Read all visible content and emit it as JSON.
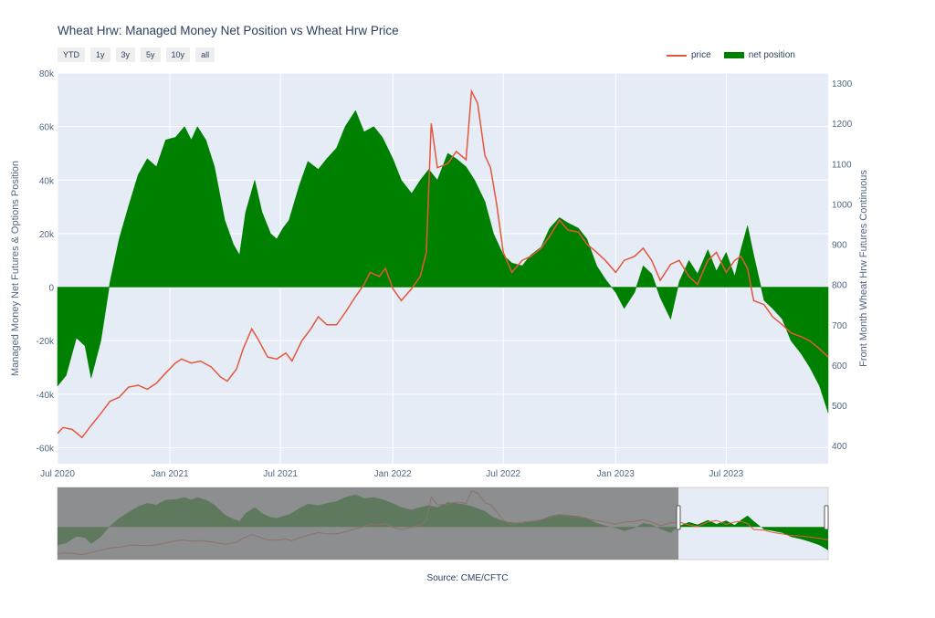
{
  "title": "Wheat Hrw: Managed Money Net Position vs Wheat Hrw Price",
  "range_buttons": [
    "YTD",
    "1y",
    "3y",
    "5y",
    "10y",
    "all"
  ],
  "legend": {
    "price_label": "price",
    "position_label": "net position"
  },
  "source": "Source: CME/CFTC",
  "colors": {
    "price": "#e4573d",
    "position": "#008000",
    "plot_bg": "#e5ecf6"
  },
  "chart_data": {
    "type": "area",
    "title": "Wheat Hrw: Managed Money Net Position vs Wheat Hrw Price",
    "y_left_label": "Managed Money Net Futures & Options Position",
    "y_right_label": "Front Month Wheat Hrw Futures Continuous",
    "y_left_ticks": [
      "80k",
      "60k",
      "40k",
      "20k",
      "0",
      "-20k",
      "-40k",
      "-60k"
    ],
    "y_right_ticks": [
      "1300",
      "1200",
      "1100",
      "1000",
      "900",
      "800",
      "700",
      "600",
      "500",
      "400"
    ],
    "x_tick_labels": [
      "Jul 2020",
      "Jan 2021",
      "Jul 2021",
      "Jan 2022",
      "Jul 2022",
      "Jan 2023",
      "Jul 2023"
    ],
    "x_range": [
      "2020-07-01",
      "2023-12-15"
    ],
    "y_left_range": [
      -66000,
      80000
    ],
    "y_right_range": [
      355,
      1325
    ],
    "series": [
      {
        "name": "net position",
        "axis": "left",
        "points": [
          [
            "2020-07-01",
            -37000
          ],
          [
            "2020-07-15",
            -33000
          ],
          [
            "2020-08-01",
            -19000
          ],
          [
            "2020-08-15",
            -22000
          ],
          [
            "2020-08-25",
            -34000
          ],
          [
            "2020-09-10",
            -20000
          ],
          [
            "2020-09-25",
            2000
          ],
          [
            "2020-10-10",
            18000
          ],
          [
            "2020-10-25",
            30000
          ],
          [
            "2020-11-10",
            42000
          ],
          [
            "2020-11-25",
            48000
          ],
          [
            "2020-12-10",
            45000
          ],
          [
            "2020-12-25",
            55000
          ],
          [
            "2021-01-10",
            56000
          ],
          [
            "2021-01-25",
            60000
          ],
          [
            "2021-02-05",
            55000
          ],
          [
            "2021-02-15",
            60000
          ],
          [
            "2021-03-01",
            55000
          ],
          [
            "2021-03-15",
            45000
          ],
          [
            "2021-04-01",
            25000
          ],
          [
            "2021-04-15",
            16000
          ],
          [
            "2021-04-25",
            12000
          ],
          [
            "2021-05-05",
            28000
          ],
          [
            "2021-05-20",
            40000
          ],
          [
            "2021-06-01",
            28000
          ],
          [
            "2021-06-15",
            20000
          ],
          [
            "2021-06-25",
            18000
          ],
          [
            "2021-07-05",
            22000
          ],
          [
            "2021-07-15",
            25000
          ],
          [
            "2021-08-01",
            38000
          ],
          [
            "2021-08-15",
            47000
          ],
          [
            "2021-09-01",
            44000
          ],
          [
            "2021-09-15",
            48000
          ],
          [
            "2021-10-01",
            52000
          ],
          [
            "2021-10-15",
            60000
          ],
          [
            "2021-11-01",
            66000
          ],
          [
            "2021-11-15",
            58000
          ],
          [
            "2021-12-01",
            60000
          ],
          [
            "2021-12-15",
            56000
          ],
          [
            "2022-01-01",
            48000
          ],
          [
            "2022-01-15",
            40000
          ],
          [
            "2022-02-01",
            35000
          ],
          [
            "2022-02-15",
            40000
          ],
          [
            "2022-03-01",
            44000
          ],
          [
            "2022-03-15",
            40000
          ],
          [
            "2022-04-01",
            50000
          ],
          [
            "2022-04-15",
            48000
          ],
          [
            "2022-05-01",
            45000
          ],
          [
            "2022-05-15",
            40000
          ],
          [
            "2022-06-01",
            32000
          ],
          [
            "2022-06-15",
            20000
          ],
          [
            "2022-07-01",
            12000
          ],
          [
            "2022-07-15",
            9000
          ],
          [
            "2022-08-01",
            8000
          ],
          [
            "2022-08-15",
            12000
          ],
          [
            "2022-09-01",
            15000
          ],
          [
            "2022-09-15",
            22000
          ],
          [
            "2022-10-01",
            26000
          ],
          [
            "2022-10-15",
            24000
          ],
          [
            "2022-11-01",
            22000
          ],
          [
            "2022-11-15",
            18000
          ],
          [
            "2022-12-01",
            8000
          ],
          [
            "2022-12-15",
            3000
          ],
          [
            "2023-01-01",
            -2000
          ],
          [
            "2023-01-15",
            -8000
          ],
          [
            "2023-02-01",
            -2000
          ],
          [
            "2023-02-15",
            8000
          ],
          [
            "2023-03-01",
            5000
          ],
          [
            "2023-03-15",
            -4000
          ],
          [
            "2023-04-01",
            -12000
          ],
          [
            "2023-04-15",
            2000
          ],
          [
            "2023-05-01",
            10000
          ],
          [
            "2023-05-15",
            5000
          ],
          [
            "2023-06-01",
            14000
          ],
          [
            "2023-06-15",
            6000
          ],
          [
            "2023-07-01",
            13000
          ],
          [
            "2023-07-15",
            4000
          ],
          [
            "2023-07-25",
            14000
          ],
          [
            "2023-08-05",
            23000
          ],
          [
            "2023-08-15",
            12000
          ],
          [
            "2023-09-01",
            -5000
          ],
          [
            "2023-09-15",
            -8000
          ],
          [
            "2023-10-01",
            -12000
          ],
          [
            "2023-10-15",
            -20000
          ],
          [
            "2023-11-01",
            -25000
          ],
          [
            "2023-11-15",
            -30000
          ],
          [
            "2023-12-01",
            -37000
          ],
          [
            "2023-12-15",
            -47000
          ]
        ]
      },
      {
        "name": "price",
        "axis": "right",
        "points": [
          [
            "2020-07-01",
            430
          ],
          [
            "2020-07-10",
            445
          ],
          [
            "2020-07-25",
            440
          ],
          [
            "2020-08-10",
            420
          ],
          [
            "2020-08-25",
            450
          ],
          [
            "2020-09-10",
            480
          ],
          [
            "2020-09-25",
            510
          ],
          [
            "2020-10-10",
            520
          ],
          [
            "2020-10-25",
            545
          ],
          [
            "2020-11-10",
            550
          ],
          [
            "2020-11-25",
            540
          ],
          [
            "2020-12-10",
            555
          ],
          [
            "2020-12-25",
            580
          ],
          [
            "2021-01-10",
            605
          ],
          [
            "2021-01-20",
            615
          ],
          [
            "2021-02-05",
            605
          ],
          [
            "2021-02-20",
            610
          ],
          [
            "2021-03-10",
            595
          ],
          [
            "2021-03-25",
            570
          ],
          [
            "2021-04-05",
            560
          ],
          [
            "2021-04-20",
            590
          ],
          [
            "2021-05-01",
            640
          ],
          [
            "2021-05-15",
            690
          ],
          [
            "2021-05-25",
            665
          ],
          [
            "2021-06-10",
            620
          ],
          [
            "2021-06-25",
            615
          ],
          [
            "2021-07-10",
            630
          ],
          [
            "2021-07-20",
            610
          ],
          [
            "2021-08-05",
            660
          ],
          [
            "2021-08-20",
            690
          ],
          [
            "2021-09-01",
            720
          ],
          [
            "2021-09-15",
            700
          ],
          [
            "2021-10-01",
            700
          ],
          [
            "2021-10-15",
            730
          ],
          [
            "2021-11-01",
            770
          ],
          [
            "2021-11-15",
            800
          ],
          [
            "2021-11-25",
            830
          ],
          [
            "2021-12-10",
            820
          ],
          [
            "2021-12-20",
            840
          ],
          [
            "2022-01-01",
            790
          ],
          [
            "2022-01-15",
            760
          ],
          [
            "2022-02-01",
            790
          ],
          [
            "2022-02-15",
            820
          ],
          [
            "2022-02-25",
            880
          ],
          [
            "2022-03-05",
            1200
          ],
          [
            "2022-03-15",
            1090
          ],
          [
            "2022-04-01",
            1100
          ],
          [
            "2022-04-15",
            1130
          ],
          [
            "2022-05-01",
            1110
          ],
          [
            "2022-05-10",
            1280
          ],
          [
            "2022-05-20",
            1250
          ],
          [
            "2022-06-01",
            1120
          ],
          [
            "2022-06-10",
            1090
          ],
          [
            "2022-06-20",
            1000
          ],
          [
            "2022-07-01",
            880
          ],
          [
            "2022-07-15",
            830
          ],
          [
            "2022-08-01",
            860
          ],
          [
            "2022-08-15",
            870
          ],
          [
            "2022-09-01",
            890
          ],
          [
            "2022-09-15",
            920
          ],
          [
            "2022-10-01",
            960
          ],
          [
            "2022-10-15",
            935
          ],
          [
            "2022-11-01",
            930
          ],
          [
            "2022-11-15",
            900
          ],
          [
            "2022-12-01",
            880
          ],
          [
            "2022-12-15",
            860
          ],
          [
            "2023-01-01",
            830
          ],
          [
            "2023-01-15",
            860
          ],
          [
            "2023-02-01",
            870
          ],
          [
            "2023-02-15",
            890
          ],
          [
            "2023-03-01",
            860
          ],
          [
            "2023-03-15",
            810
          ],
          [
            "2023-04-01",
            850
          ],
          [
            "2023-04-15",
            860
          ],
          [
            "2023-05-01",
            820
          ],
          [
            "2023-05-15",
            800
          ],
          [
            "2023-06-01",
            860
          ],
          [
            "2023-06-15",
            880
          ],
          [
            "2023-07-01",
            830
          ],
          [
            "2023-07-15",
            860
          ],
          [
            "2023-07-25",
            870
          ],
          [
            "2023-08-05",
            840
          ],
          [
            "2023-08-15",
            760
          ],
          [
            "2023-09-01",
            750
          ],
          [
            "2023-09-15",
            720
          ],
          [
            "2023-10-01",
            700
          ],
          [
            "2023-10-15",
            680
          ],
          [
            "2023-11-01",
            670
          ],
          [
            "2023-11-15",
            660
          ],
          [
            "2023-12-01",
            640
          ],
          [
            "2023-12-15",
            620
          ]
        ]
      }
    ],
    "grid": true,
    "legend_position": "top-right",
    "range_slider": true
  }
}
